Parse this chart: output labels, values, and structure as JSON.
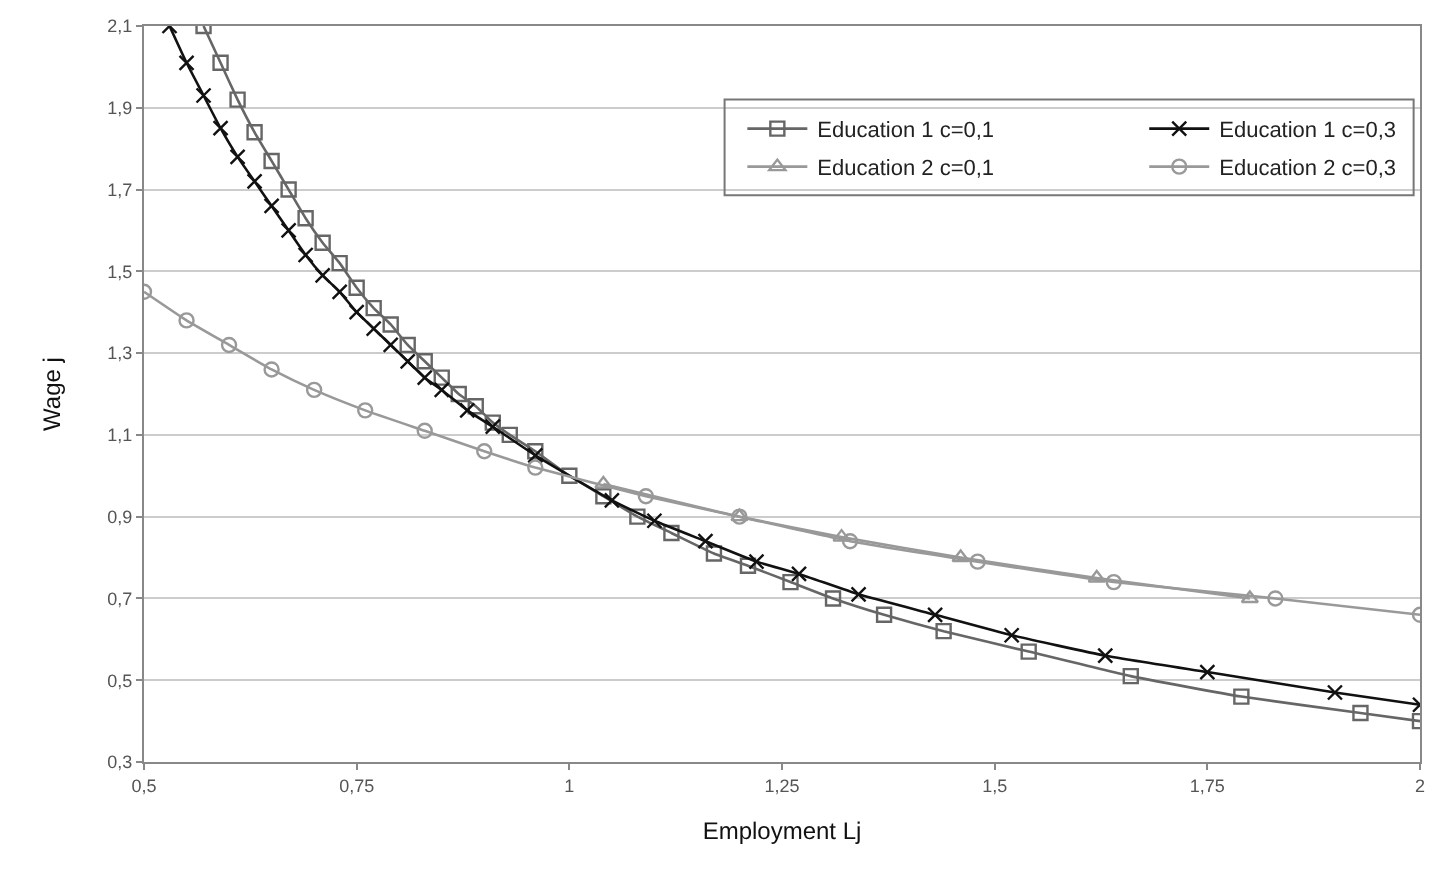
{
  "chart_data": {
    "type": "line",
    "xlabel": "Employment Lj",
    "ylabel": "Wage j",
    "xlim": [
      0.5,
      2
    ],
    "xticks": [
      {
        "value": 0.5,
        "label": "0,5"
      },
      {
        "value": 0.75,
        "label": "0,75"
      },
      1,
      {
        "value": 1.25,
        "label": "1,25"
      },
      {
        "value": 1.5,
        "label": "1,5"
      },
      {
        "value": 1.75,
        "label": "1,75"
      },
      2
    ],
    "ylim": [
      0.3,
      2.1
    ],
    "yticks": [
      {
        "value": 0.3,
        "label": "0,3"
      },
      {
        "value": 0.5,
        "label": "0,5"
      },
      {
        "value": 0.7,
        "label": "0,7"
      },
      {
        "value": 0.9,
        "label": "0,9"
      },
      {
        "value": 1.1,
        "label": "1,1"
      },
      {
        "value": 1.3,
        "label": "1,3"
      },
      {
        "value": 1.5,
        "label": "1,5"
      },
      {
        "value": 1.7,
        "label": "1,7"
      },
      {
        "value": 1.9,
        "label": "1,9"
      },
      {
        "value": 2.1,
        "label": "2,1"
      }
    ],
    "grid": "y",
    "legend": "top right",
    "line_style": "solid",
    "series": [
      {
        "name": "Education 1 c=0,1",
        "color": "#666666",
        "marker": "square",
        "x": [
          0.57,
          0.59,
          0.61,
          0.63,
          0.65,
          0.67,
          0.69,
          0.71,
          0.73,
          0.75,
          0.77,
          0.79,
          0.81,
          0.83,
          0.85,
          0.87,
          0.89,
          0.91,
          0.93,
          0.96,
          1.0,
          1.04,
          1.08,
          1.12,
          1.17,
          1.21,
          1.26,
          1.31,
          1.37,
          1.44,
          1.54,
          1.66,
          1.79,
          1.93,
          2.0
        ],
        "values": [
          2.1,
          2.01,
          1.92,
          1.84,
          1.77,
          1.7,
          1.63,
          1.57,
          1.52,
          1.46,
          1.41,
          1.37,
          1.32,
          1.28,
          1.24,
          1.2,
          1.17,
          1.13,
          1.1,
          1.06,
          1.0,
          0.95,
          0.9,
          0.86,
          0.81,
          0.78,
          0.74,
          0.7,
          0.66,
          0.62,
          0.57,
          0.51,
          0.46,
          0.42,
          0.4
        ]
      },
      {
        "name": "Education 1 c=0,3",
        "color": "#111111",
        "marker": "cross",
        "x": [
          0.53,
          0.55,
          0.57,
          0.59,
          0.61,
          0.63,
          0.65,
          0.67,
          0.69,
          0.71,
          0.73,
          0.75,
          0.77,
          0.79,
          0.81,
          0.83,
          0.85,
          0.88,
          0.91,
          0.96,
          1.05,
          1.1,
          1.16,
          1.22,
          1.27,
          1.34,
          1.43,
          1.52,
          1.63,
          1.75,
          1.9,
          2.0
        ],
        "values": [
          2.1,
          2.01,
          1.93,
          1.85,
          1.78,
          1.72,
          1.66,
          1.6,
          1.54,
          1.49,
          1.45,
          1.4,
          1.36,
          1.32,
          1.28,
          1.24,
          1.21,
          1.16,
          1.12,
          1.05,
          0.94,
          0.89,
          0.84,
          0.79,
          0.76,
          0.71,
          0.66,
          0.61,
          0.56,
          0.52,
          0.47,
          0.44
        ]
      },
      {
        "name": "Education 2 c=0,1",
        "color": "#999999",
        "marker": "triangle",
        "x": [
          1.04,
          1.2,
          1.32,
          1.46,
          1.62,
          1.8
        ],
        "values": [
          0.98,
          0.9,
          0.85,
          0.8,
          0.75,
          0.7
        ]
      },
      {
        "name": "Education 2 c=0,3",
        "color": "#999999",
        "marker": "circle",
        "x": [
          0.5,
          0.55,
          0.6,
          0.65,
          0.7,
          0.76,
          0.83,
          0.9,
          0.96,
          1.09,
          1.2,
          1.33,
          1.48,
          1.64,
          1.83,
          2.0
        ],
        "values": [
          1.45,
          1.38,
          1.32,
          1.26,
          1.21,
          1.16,
          1.11,
          1.06,
          1.02,
          0.95,
          0.9,
          0.84,
          0.79,
          0.74,
          0.7,
          0.66
        ]
      }
    ]
  }
}
